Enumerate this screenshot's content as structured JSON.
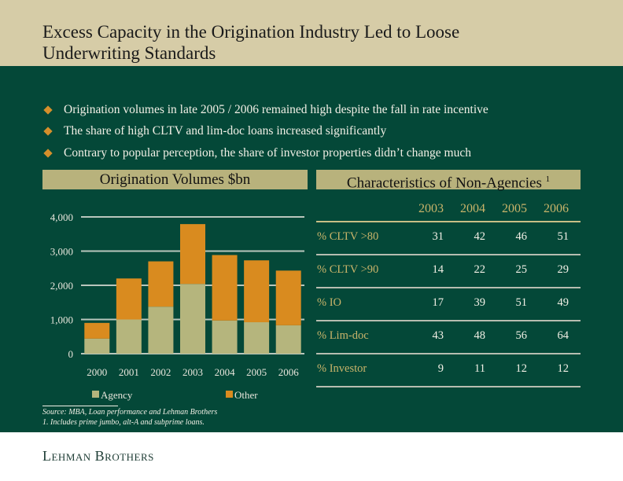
{
  "header": {
    "title_line1": "Excess Capacity in the Origination Industry Led to Loose",
    "title_line2": "Underwriting Standards"
  },
  "bullets": [
    "Origination volumes in late 2005 / 2006 remained high despite the fall in rate incentive",
    "The share of high CLTV and lim-doc loans increased significantly",
    "Contrary to popular perception, the share of investor properties didn’t change much"
  ],
  "colors": {
    "header_bg": "#d6cca7",
    "background": "#044838",
    "agency": "#b5b57d",
    "other": "#d98b1f",
    "bullet": "#d58f2b"
  },
  "left_heading": "Origination Volumes $bn",
  "right_heading": "Characteristics of Non-Agencies",
  "right_heading_sup": "1",
  "chart_data": {
    "type": "bar",
    "stacked": true,
    "title": "Origination Volumes $bn",
    "categories": [
      "2000",
      "2001",
      "2002",
      "2003",
      "2004",
      "2005",
      "2006"
    ],
    "series": [
      {
        "name": "Agency",
        "values": [
          440,
          1000,
          1375,
          2040,
          970,
          920,
          830
        ],
        "color": "#b5b57d"
      },
      {
        "name": "Other",
        "values": [
          460,
          1200,
          1325,
          1750,
          1915,
          1810,
          1600
        ],
        "color": "#d98b1f"
      }
    ],
    "ylim": [
      0,
      4000
    ],
    "yticks": [
      "0",
      "1,000",
      "2,000",
      "3,000",
      "4,000"
    ],
    "grid": true,
    "legend": "bottom"
  },
  "table": {
    "years": [
      "2003",
      "2004",
      "2005",
      "2006"
    ],
    "rows": [
      {
        "label": "% CLTV >80",
        "values": [
          "31",
          "42",
          "46",
          "51"
        ]
      },
      {
        "label": "% CLTV >90",
        "values": [
          "14",
          "22",
          "25",
          "29"
        ]
      },
      {
        "label": "% IO",
        "values": [
          "17",
          "39",
          "51",
          "49"
        ]
      },
      {
        "label": "% Lim-doc",
        "values": [
          "43",
          "48",
          "56",
          "64"
        ]
      },
      {
        "label": "% Investor",
        "values": [
          "9",
          "11",
          "12",
          "12"
        ]
      }
    ]
  },
  "footnotes": {
    "source": "Source: MBA, Loan performance and Lehman Brothers",
    "note": "1. Includes prime jumbo, alt-A and subprime loans."
  },
  "logo": "Lehman Brothers"
}
